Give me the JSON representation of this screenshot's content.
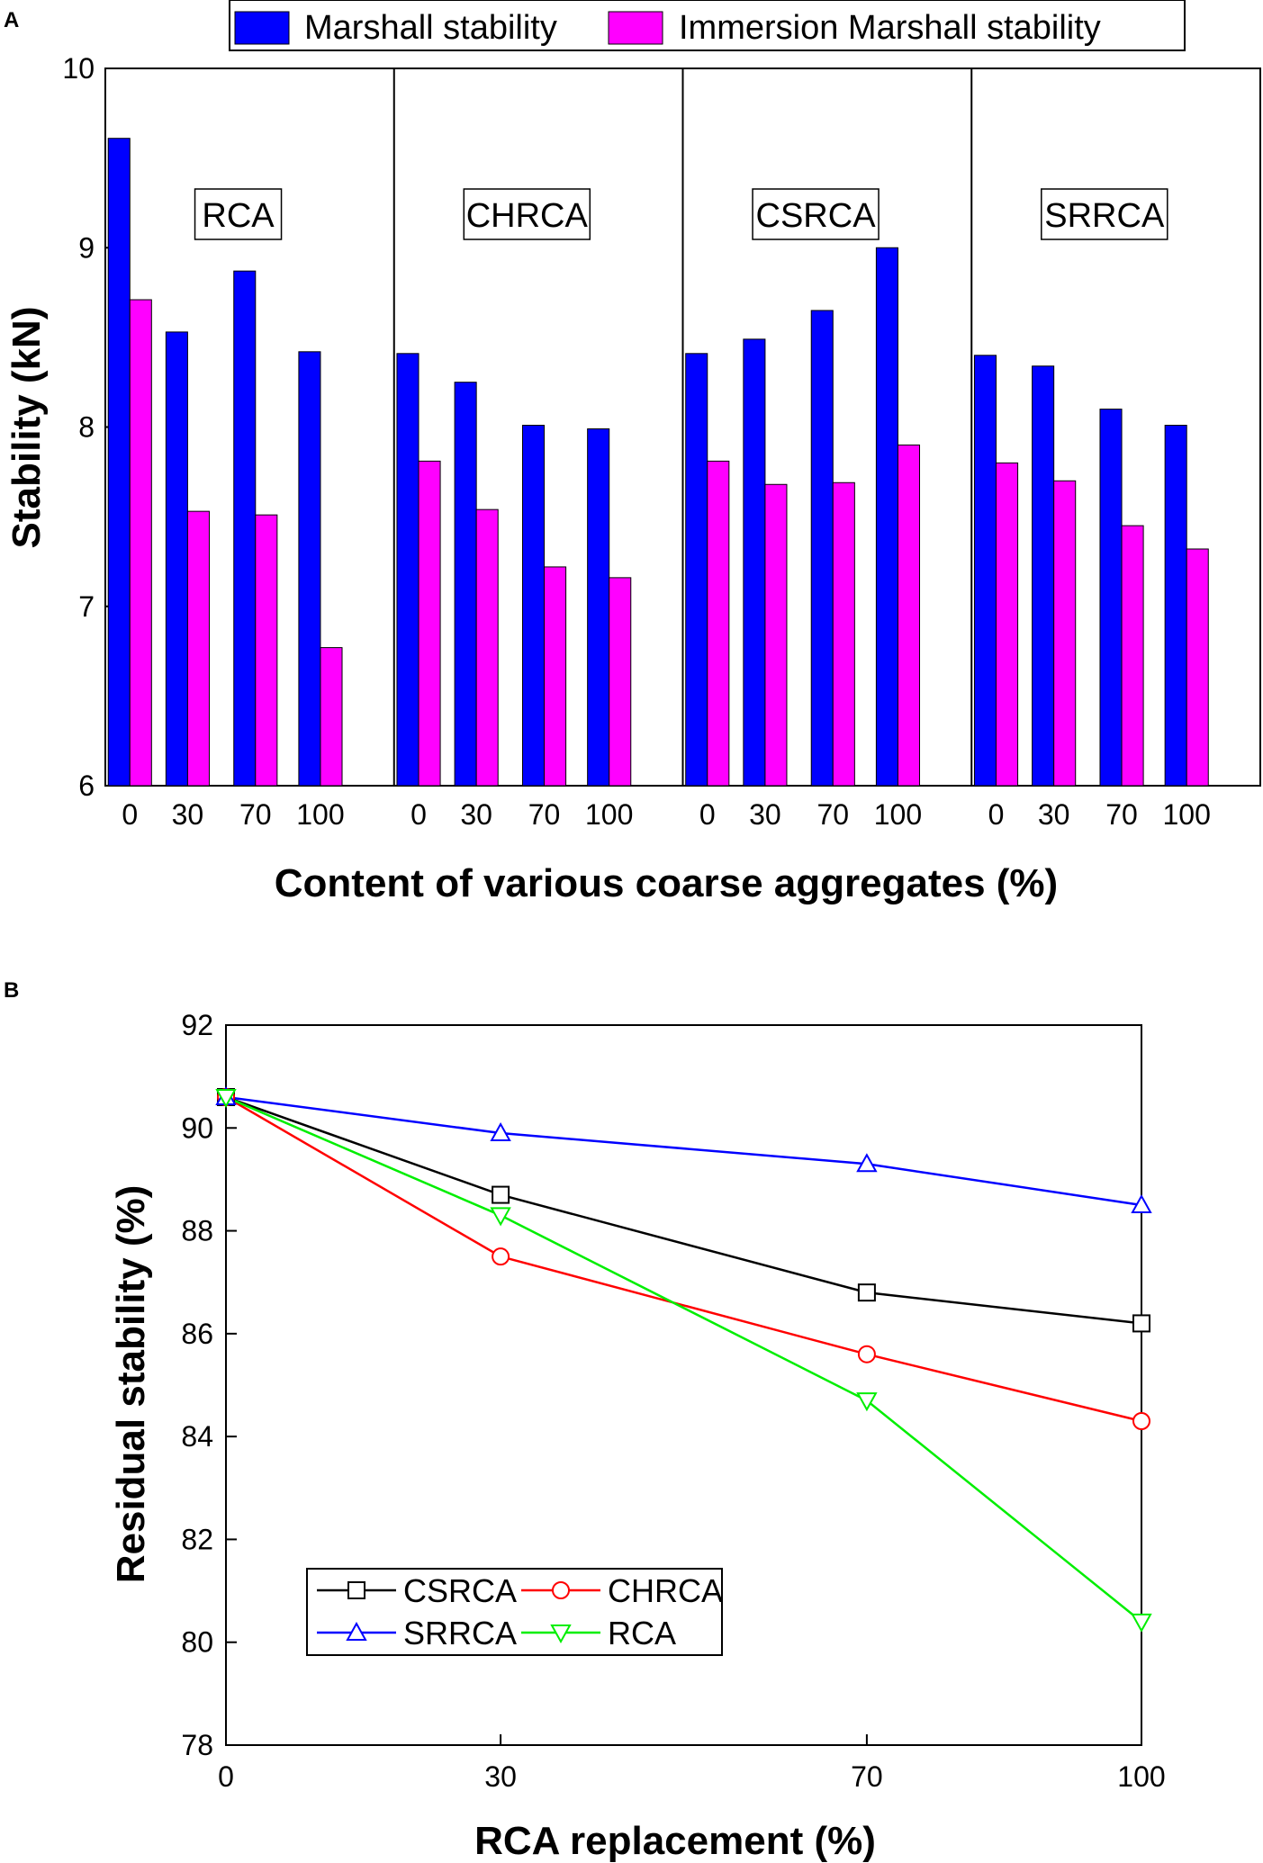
{
  "chart_data": [
    {
      "panel": "A",
      "type": "bar",
      "ylabel": "Stability (kN)",
      "xlabel": "Content of various coarse aggregates (%)",
      "ylim": [
        6,
        10
      ],
      "yticks": [
        "6",
        "7",
        "8",
        "9",
        "10"
      ],
      "legend": {
        "position": "top",
        "entries": [
          "Marshall stability",
          "Immersion Marshall stability"
        ]
      },
      "colors": {
        "marshall": "#0000ff",
        "immersion": "#ff00ff"
      },
      "groups": [
        {
          "name": "RCA",
          "categories": [
            "0",
            "30",
            "70",
            "100"
          ],
          "marshall": [
            9.61,
            8.53,
            8.87,
            8.42
          ],
          "immersion": [
            8.71,
            7.53,
            7.51,
            6.77
          ]
        },
        {
          "name": "CHRCA",
          "categories": [
            "0",
            "30",
            "70",
            "100"
          ],
          "marshall": [
            8.41,
            8.25,
            8.01,
            7.99
          ],
          "immersion": [
            7.81,
            7.54,
            7.22,
            7.16
          ]
        },
        {
          "name": "CSRCA",
          "categories": [
            "0",
            "30",
            "70",
            "100"
          ],
          "marshall": [
            8.41,
            8.49,
            8.65,
            9.0
          ],
          "immersion": [
            7.81,
            7.68,
            7.69,
            7.9
          ]
        },
        {
          "name": "SRRCA",
          "categories": [
            "0",
            "30",
            "70",
            "100"
          ],
          "marshall": [
            8.4,
            8.34,
            8.1,
            8.01
          ],
          "immersion": [
            7.8,
            7.7,
            7.45,
            7.32
          ]
        }
      ]
    },
    {
      "panel": "B",
      "type": "line",
      "ylabel": "Residual stability (%)",
      "xlabel": "RCA replacement (%)",
      "x": [
        0,
        30,
        70,
        100
      ],
      "xticks": [
        "0",
        "30",
        "70",
        "100"
      ],
      "ylim": [
        78,
        92
      ],
      "yticks": [
        "78",
        "80",
        "82",
        "84",
        "86",
        "88",
        "90",
        "92"
      ],
      "legend": {
        "position": "bottom-left"
      },
      "series": [
        {
          "name": "CSRCA",
          "color": "#000000",
          "marker": "square",
          "values": [
            90.6,
            88.7,
            86.8,
            86.2
          ]
        },
        {
          "name": "CHRCA",
          "color": "#ff0000",
          "marker": "circle",
          "values": [
            90.6,
            87.5,
            85.6,
            84.3
          ]
        },
        {
          "name": "SRRCA",
          "color": "#0000ff",
          "marker": "triangle-up",
          "values": [
            90.6,
            89.9,
            89.3,
            88.5
          ]
        },
        {
          "name": "RCA",
          "color": "#00ee00",
          "marker": "triangle-down",
          "values": [
            90.6,
            88.3,
            84.7,
            80.4
          ]
        }
      ]
    }
  ]
}
